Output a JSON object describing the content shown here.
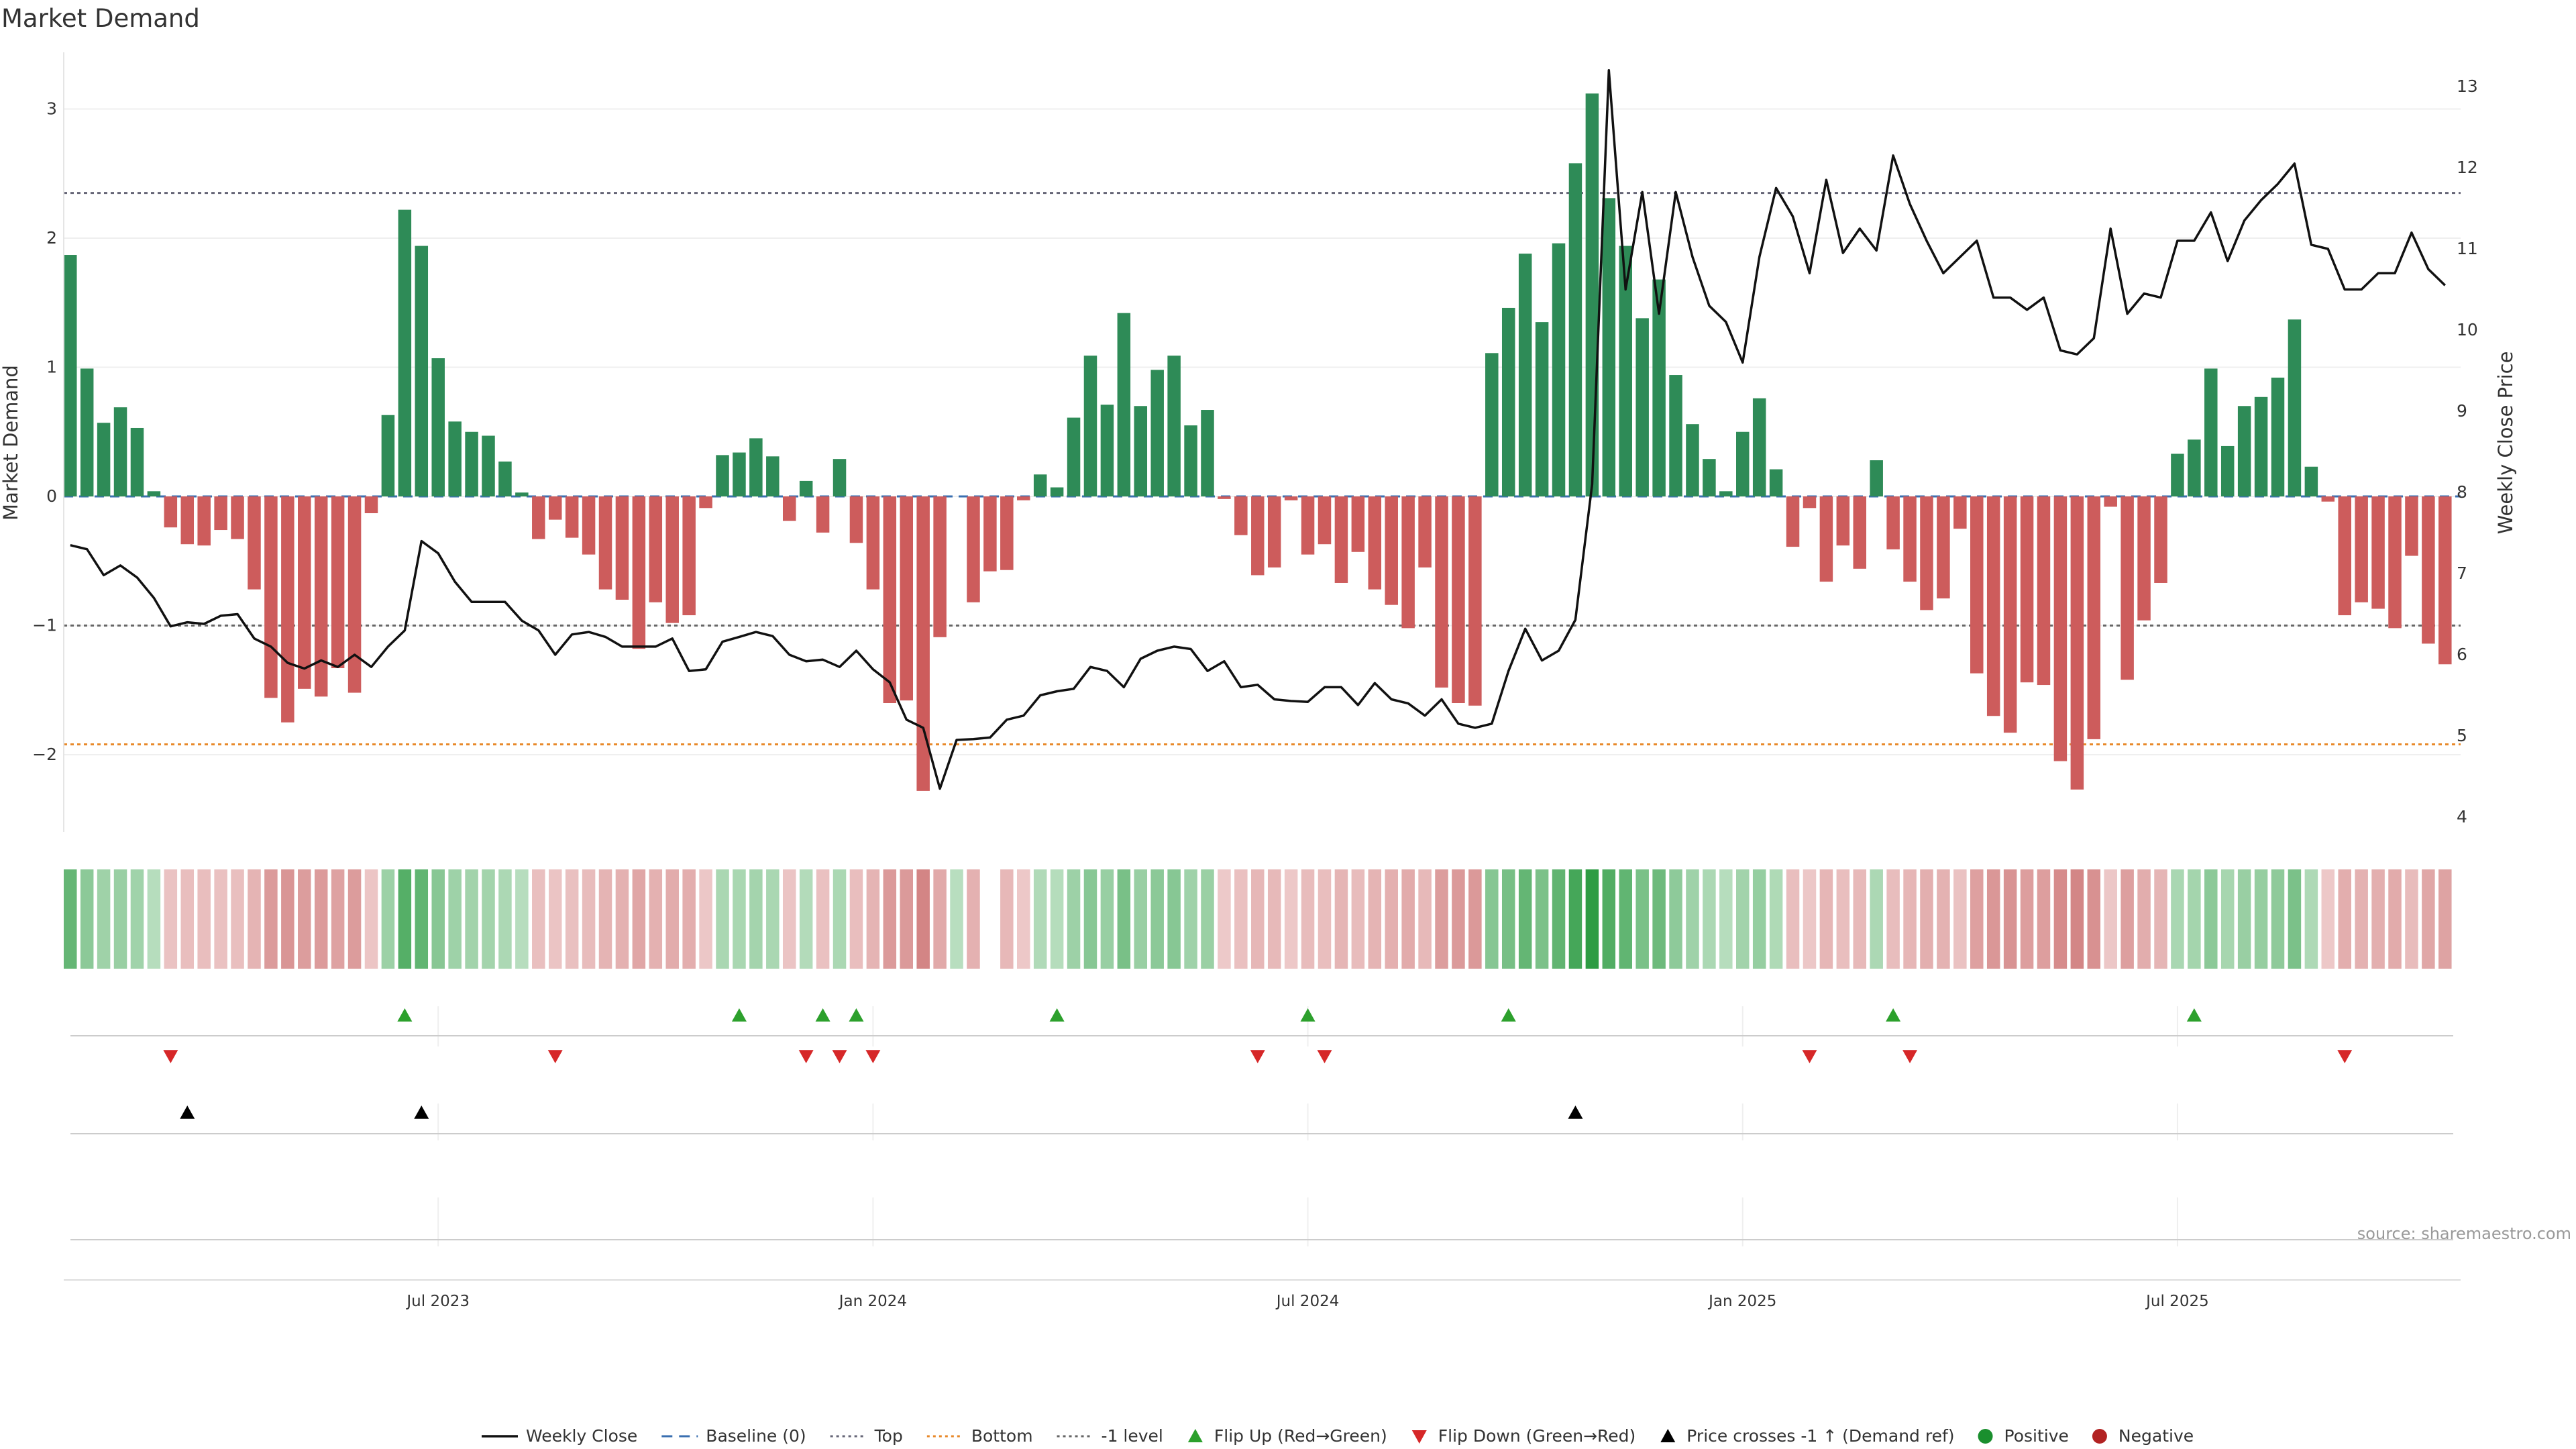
{
  "title": "Market Demand",
  "source": "source: sharemaestro.com",
  "colors": {
    "positive": "#2e8b57",
    "negative": "#cd5c5c",
    "price": "#111111",
    "top": "#666677",
    "bottom": "#e8892a",
    "minus1": "#666666",
    "baseline": "#3a6fb0",
    "flip_up": "#2ca02c",
    "flip_down": "#d62728",
    "cross": "#000000",
    "legend_positive": "#1a8f2e",
    "legend_negative": "#b22222"
  },
  "chart_data": {
    "type": "bar",
    "title": "Market Demand",
    "ylabel": "Market Demand",
    "y2label": "Weekly Close Price",
    "ylim": [
      -2.6,
      3.1
    ],
    "y2lim": [
      3.95,
      13.3
    ],
    "yticks": [
      "3",
      "2",
      "1",
      "0",
      "−1",
      "−2"
    ],
    "yticks_values": [
      3,
      2,
      1,
      0,
      -1,
      -2
    ],
    "y2ticks": [
      "13",
      "12",
      "11",
      "10",
      "9",
      "8",
      "7",
      "6",
      "5",
      "4"
    ],
    "y2ticks_values": [
      13,
      12,
      11,
      10,
      9,
      8,
      7,
      6,
      5,
      4
    ],
    "top_level": 2.35,
    "bottom_level": -1.92,
    "minus1_level": -1.0,
    "x_tick_labels": [
      "Jul 2023",
      "Jan 2024",
      "Jul 2024",
      "Jan 2025",
      "Jul 2025"
    ],
    "x_tick_weeks": [
      22,
      48,
      74,
      100,
      126
    ],
    "demand": [
      1.87,
      0.99,
      0.57,
      0.69,
      0.53,
      0.04,
      -0.24,
      -0.37,
      -0.38,
      -0.26,
      -0.33,
      -0.72,
      -1.56,
      -1.75,
      -1.49,
      -1.55,
      -1.33,
      -1.52,
      -0.13,
      0.63,
      2.22,
      1.94,
      1.07,
      0.58,
      0.5,
      0.47,
      0.27,
      0.03,
      -0.33,
      -0.18,
      -0.32,
      -0.45,
      -0.72,
      -0.8,
      -1.18,
      -0.82,
      -0.98,
      -0.92,
      -0.09,
      0.32,
      0.34,
      0.45,
      0.31,
      -0.19,
      0.12,
      -0.28,
      0.29,
      -0.36,
      -0.72,
      -1.6,
      -1.58,
      -2.28,
      -1.09,
      0.0,
      -0.82,
      -0.58,
      -0.57,
      -0.03,
      0.17,
      0.07,
      0.61,
      1.09,
      0.71,
      1.42,
      0.7,
      0.98,
      1.09,
      0.55,
      0.67,
      -0.02,
      -0.3,
      -0.61,
      -0.55,
      -0.03,
      -0.45,
      -0.37,
      -0.67,
      -0.43,
      -0.72,
      -0.84,
      -1.02,
      -0.55,
      -1.48,
      -1.6,
      -1.62,
      1.11,
      1.46,
      1.88,
      1.35,
      1.96,
      2.58,
      3.12,
      2.31,
      1.94,
      1.38,
      1.68,
      0.94,
      0.56,
      0.29,
      0.04,
      0.5,
      0.76,
      0.21,
      -0.39,
      -0.09,
      -0.66,
      -0.38,
      -0.56,
      0.28,
      -0.41,
      -0.66,
      -0.88,
      -0.79,
      -0.25,
      -1.37,
      -1.7,
      -1.83,
      -1.44,
      -1.46,
      -2.05,
      -2.27,
      -1.88,
      -0.08,
      -1.42,
      -0.96,
      -0.67,
      0.33,
      0.44,
      0.99,
      0.39,
      0.7,
      0.77,
      0.92,
      1.37,
      0.23,
      -0.04,
      -0.92,
      -0.82,
      -0.87,
      -1.02,
      -0.46,
      -1.14,
      -1.3
    ],
    "price": [
      7.35,
      7.3,
      6.98,
      7.1,
      6.95,
      6.7,
      6.35,
      6.4,
      6.38,
      6.48,
      6.5,
      6.2,
      6.1,
      5.9,
      5.83,
      5.93,
      5.85,
      6.0,
      5.85,
      6.1,
      6.3,
      7.4,
      7.25,
      6.9,
      6.65,
      6.65,
      6.65,
      6.42,
      6.3,
      6.0,
      6.25,
      6.28,
      6.22,
      6.1,
      6.1,
      6.1,
      6.2,
      5.8,
      5.82,
      6.16,
      6.22,
      6.28,
      6.23,
      6.0,
      5.92,
      5.94,
      5.85,
      6.05,
      5.82,
      5.66,
      5.2,
      5.1,
      4.35,
      4.95,
      4.96,
      4.98,
      5.2,
      5.25,
      5.5,
      5.55,
      5.58,
      5.85,
      5.8,
      5.6,
      5.95,
      6.05,
      6.1,
      6.07,
      5.8,
      5.92,
      5.6,
      5.63,
      5.45,
      5.43,
      5.42,
      5.6,
      5.6,
      5.38,
      5.65,
      5.45,
      5.4,
      5.25,
      5.45,
      5.15,
      5.1,
      5.15,
      5.8,
      6.32,
      5.93,
      6.05,
      6.43,
      8.1,
      13.2,
      10.5,
      11.7,
      10.2,
      11.7,
      10.9,
      10.3,
      10.1,
      9.6,
      10.9,
      11.75,
      11.4,
      10.7,
      11.85,
      10.95,
      11.25,
      10.98,
      12.15,
      11.55,
      11.1,
      10.7,
      10.9,
      11.1,
      10.4,
      10.4,
      10.25,
      10.4,
      9.75,
      9.7,
      9.9,
      11.25,
      10.2,
      10.45,
      10.4,
      11.1,
      11.1,
      11.45,
      10.85,
      11.35,
      11.6,
      11.8,
      12.05,
      11.05,
      11.0,
      10.5,
      10.5,
      10.7,
      10.7,
      11.2,
      10.75,
      10.55
    ],
    "flip_up_weeks": [
      20,
      40,
      45,
      47,
      59,
      74,
      86,
      109,
      127
    ],
    "flip_down_weeks": [
      6,
      29,
      44,
      46,
      48,
      71,
      75,
      104,
      110,
      136
    ],
    "price_cross_weeks": [
      7,
      21,
      90
    ],
    "strip_gap_weeks": [
      55
    ]
  },
  "legend": [
    {
      "label": "Weekly Close",
      "kind": "line",
      "color_key": "price"
    },
    {
      "label": "Baseline (0)",
      "kind": "dashed",
      "color_key": "baseline"
    },
    {
      "label": "Top",
      "kind": "dotted",
      "color_key": "top"
    },
    {
      "label": "Bottom",
      "kind": "dotted",
      "color_key": "bottom"
    },
    {
      "label": "-1 level",
      "kind": "dotted",
      "color_key": "minus1"
    },
    {
      "label": "Flip Up (Red→Green)",
      "kind": "tri-up",
      "color_key": "flip_up"
    },
    {
      "label": "Flip Down (Green→Red)",
      "kind": "tri-down",
      "color_key": "flip_down"
    },
    {
      "label": "Price crosses -1 ↑ (Demand ref)",
      "kind": "tri-up",
      "color_key": "cross"
    },
    {
      "label": "Positive",
      "kind": "dot",
      "color_key": "legend_positive"
    },
    {
      "label": "Negative",
      "kind": "dot",
      "color_key": "legend_negative"
    }
  ]
}
